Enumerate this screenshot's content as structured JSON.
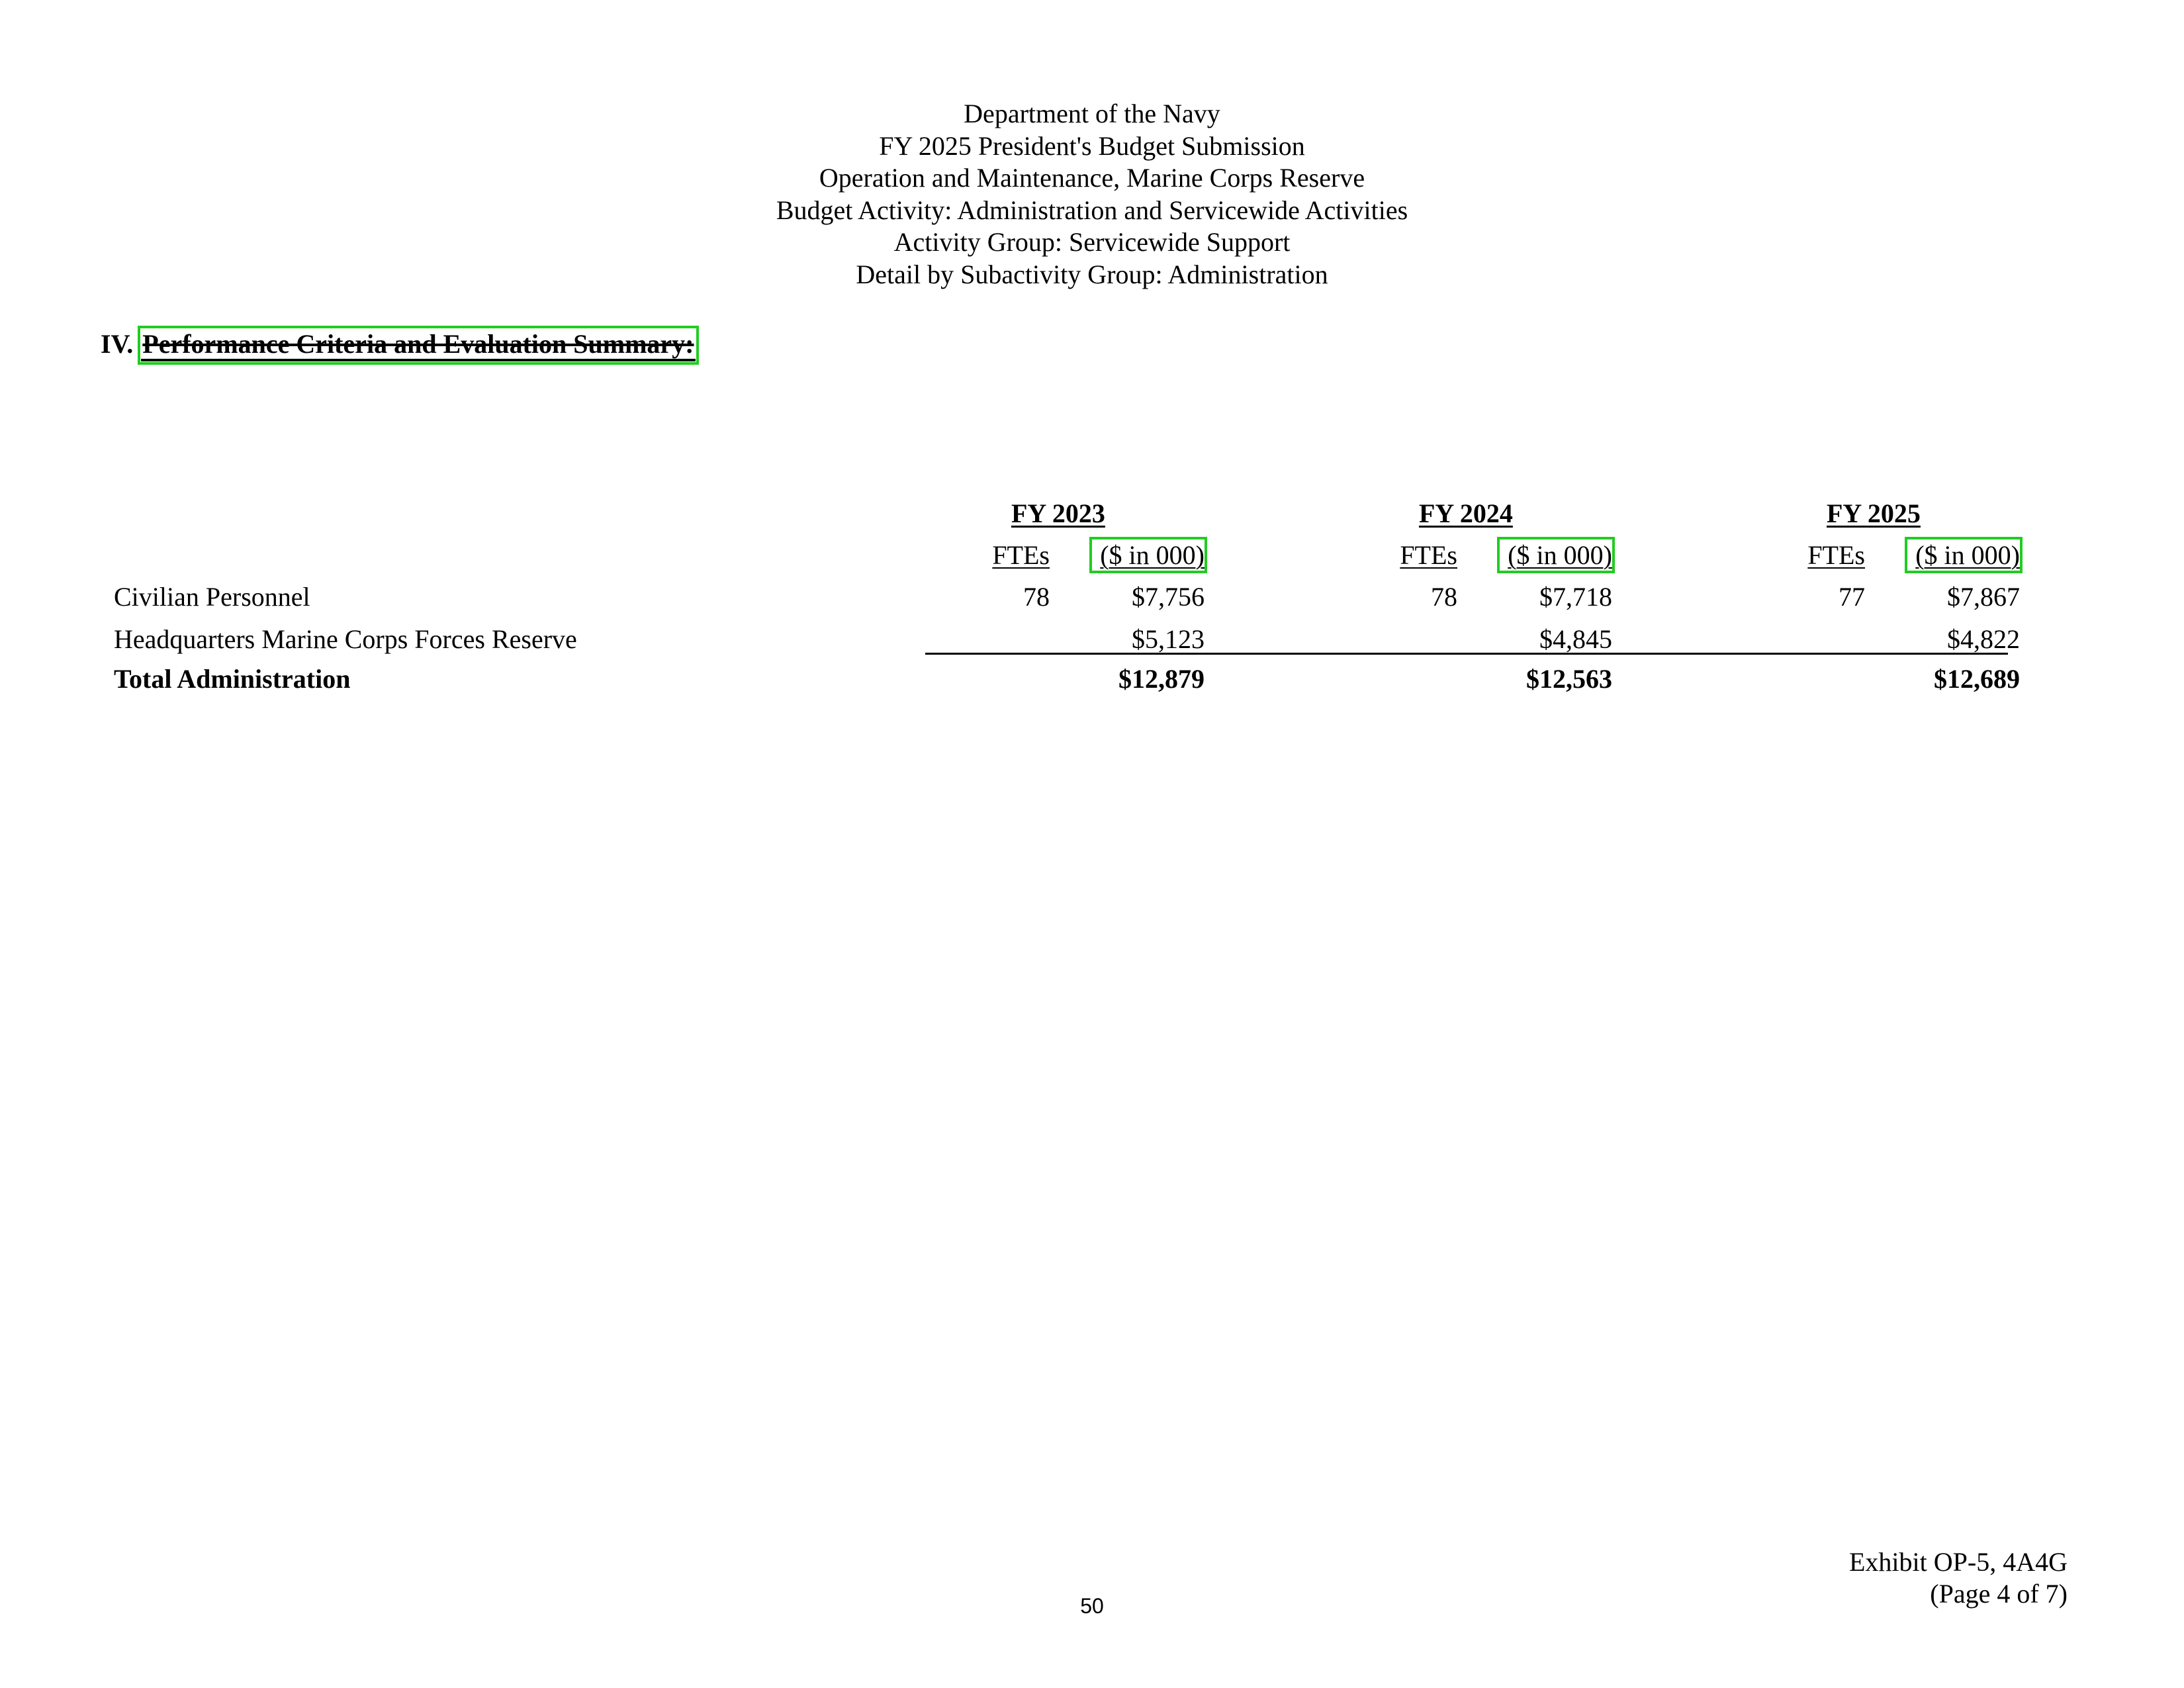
{
  "header": {
    "lines": [
      "Department of the Navy",
      "FY 2025 President's Budget Submission",
      "Operation and Maintenance, Marine Corps Reserve",
      "Budget Activity: Administration and Servicewide Activities",
      "Activity Group: Servicewide Support",
      "Detail by Subactivity Group: Administration"
    ]
  },
  "section": {
    "number": "IV.",
    "title": "Performance Criteria and Evaluation Summary:"
  },
  "table": {
    "years": [
      "FY 2023",
      "FY 2024",
      "FY 2025"
    ],
    "subheaders": {
      "ftes": "FTEs",
      "dollars": "($ in 000)"
    },
    "rows": [
      {
        "label": "Civilian Personnel",
        "values": [
          {
            "ftes": "78",
            "dollars": "$7,756"
          },
          {
            "ftes": "78",
            "dollars": "$7,718"
          },
          {
            "ftes": "77",
            "dollars": "$7,867"
          }
        ]
      },
      {
        "label": "Headquarters Marine Corps Forces Reserve",
        "values": [
          {
            "ftes": "",
            "dollars": "$5,123"
          },
          {
            "ftes": "",
            "dollars": "$4,845"
          },
          {
            "ftes": "",
            "dollars": "$4,822"
          }
        ]
      }
    ],
    "total": {
      "label": "Total Administration",
      "values": [
        "$12,879",
        "$12,563",
        "$12,689"
      ]
    }
  },
  "footer": {
    "page_number": "50",
    "exhibit": "Exhibit OP-5, 4A4G",
    "page_of": "(Page 4 of 7)"
  },
  "colors": {
    "highlight_box": "#22cc22"
  }
}
